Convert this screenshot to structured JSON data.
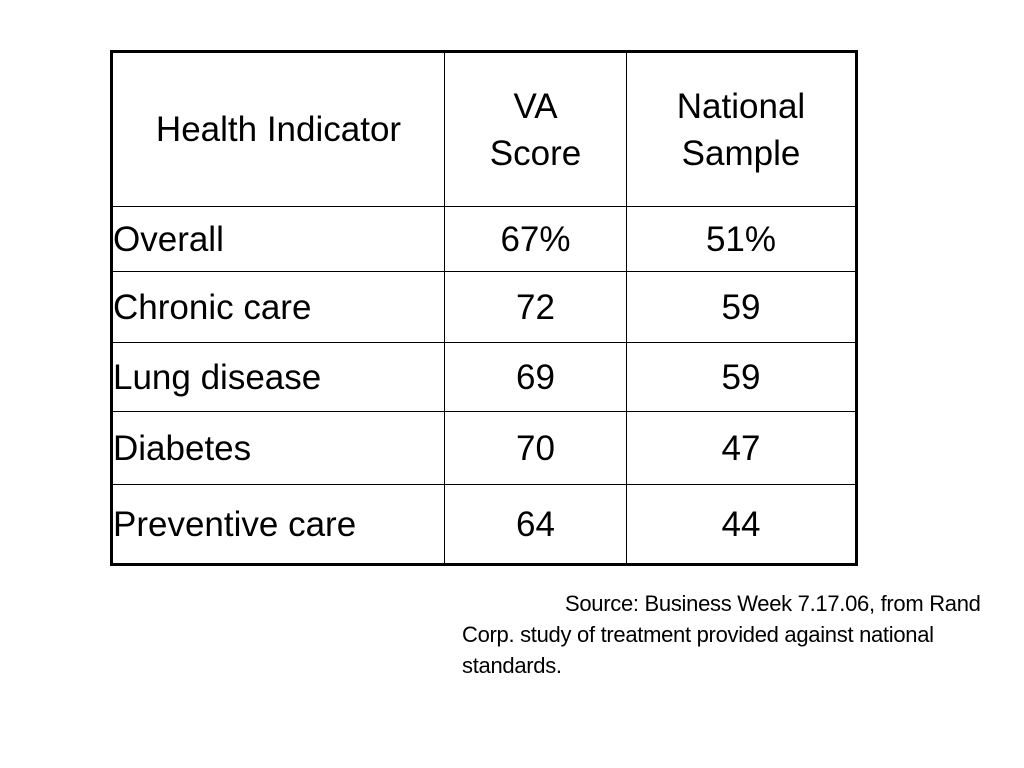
{
  "table": {
    "headers": {
      "indicator": "Health Indicator",
      "va_line1": "VA",
      "va_line2": "Score",
      "national_line1": "National",
      "national_line2": "Sample"
    },
    "rows": [
      {
        "label": "Overall",
        "va": "67%",
        "national": "51%"
      },
      {
        "label": "Chronic care",
        "va": "72",
        "national": "59"
      },
      {
        "label": "Lung disease",
        "va": "69",
        "national": "59"
      },
      {
        "label": "Diabetes",
        "va": "70",
        "national": "47"
      },
      {
        "label": "Preventive care",
        "va": "64",
        "national": "44"
      }
    ]
  },
  "source": "Source: Business Week 7.17.06, from Rand Corp. study of treatment provided against national standards."
}
